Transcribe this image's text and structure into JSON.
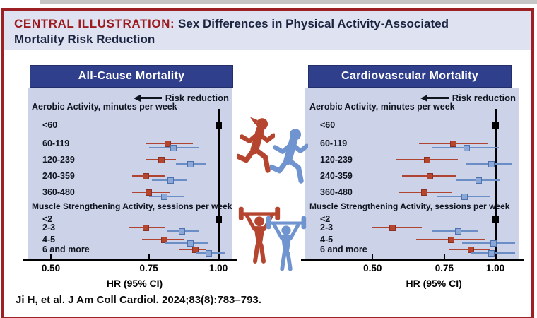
{
  "header": {
    "label": "CENTRAL ILLUSTRATION:",
    "title_line1": "Sex Differences in Physical Activity-Associated",
    "title_line2": "Mortality Risk Reduction"
  },
  "footer": {
    "citation": "Ji H, et al. J Am Coll Cardiol. 2024;83(8):783–793."
  },
  "colors": {
    "frame_red": "#9c2024",
    "title_red": "#9c1b20",
    "title_navy": "#1b2440",
    "band_bg": "#dfe3f1",
    "panel_header_bg": "#2f3f8c",
    "panel_bg": "#ccd3e9",
    "women_red": "#b5452f",
    "men_blue": "#8aa7d7",
    "men_blue_line": "#6b8ec6",
    "reference_black": "#000000"
  },
  "center_figures": {
    "top": [
      "female-runner",
      "male-runner"
    ],
    "bottom": [
      "female-weightlifter",
      "male-weightlifter"
    ],
    "red_means": "women",
    "blue_means": "men"
  },
  "chart_data": [
    {
      "type": "forest",
      "title": "All-Cause Mortality",
      "direction_annotation": "Risk reduction",
      "xlabel": "HR (95% CI)",
      "xscale": "log",
      "xticks": [
        "0.50",
        "0.75",
        "1.00"
      ],
      "xtick_values": [
        0.5,
        0.75,
        1.0
      ],
      "xlim": [
        0.454,
        1.06
      ],
      "reference_value": 1.0,
      "series_legend": {
        "red": "women",
        "blue": "men"
      },
      "sections": [
        {
          "header": "Aerobic Activity, minutes per week",
          "rows": [
            {
              "label": "<60",
              "reference": true
            },
            {
              "label": "60-119",
              "red": {
                "hr": 0.81,
                "lo": 0.74,
                "hi": 0.9
              },
              "blue": {
                "hr": 0.83,
                "lo": 0.75,
                "hi": 0.92
              }
            },
            {
              "label": "120-239",
              "red": {
                "hr": 0.79,
                "lo": 0.74,
                "hi": 0.84
              },
              "blue": {
                "hr": 0.89,
                "lo": 0.84,
                "hi": 0.95
              }
            },
            {
              "label": "240-359",
              "red": {
                "hr": 0.74,
                "lo": 0.7,
                "hi": 0.8
              },
              "blue": {
                "hr": 0.82,
                "lo": 0.76,
                "hi": 0.88
              }
            },
            {
              "label": "360-480",
              "red": {
                "hr": 0.75,
                "lo": 0.7,
                "hi": 0.82
              },
              "blue": {
                "hr": 0.8,
                "lo": 0.75,
                "hi": 0.87
              }
            }
          ]
        },
        {
          "header": "Muscle Strengthening Activity, sessions per week",
          "rows": [
            {
              "label": "<2",
              "reference": true
            },
            {
              "label": "2-3",
              "red": {
                "hr": 0.74,
                "lo": 0.69,
                "hi": 0.8
              },
              "blue": {
                "hr": 0.86,
                "lo": 0.81,
                "hi": 0.92
              }
            },
            {
              "label": "4-5",
              "red": {
                "hr": 0.8,
                "lo": 0.73,
                "hi": 0.87
              },
              "blue": {
                "hr": 0.89,
                "lo": 0.8,
                "hi": 0.96
              }
            },
            {
              "label": "6 and more",
              "red": {
                "hr": 0.91,
                "lo": 0.85,
                "hi": 0.95
              },
              "blue": {
                "hr": 0.96,
                "lo": 0.91,
                "hi": 1.03
              }
            }
          ]
        }
      ]
    },
    {
      "type": "forest",
      "title": "Cardiovascular Mortality",
      "direction_annotation": "Risk reduction",
      "xlabel": "HR (95% CI)",
      "xscale": "log",
      "xticks": [
        "0.50",
        "0.75",
        "1.00"
      ],
      "xtick_values": [
        0.5,
        0.75,
        1.0
      ],
      "xlim": [
        0.342,
        1.145
      ],
      "reference_value": 1.0,
      "series_legend": {
        "red": "women",
        "blue": "men"
      },
      "sections": [
        {
          "header": "Aerobic Activity, minutes per week",
          "rows": [
            {
              "label": "<60",
              "reference": true
            },
            {
              "label": "60-119",
              "red": {
                "hr": 0.79,
                "lo": 0.65,
                "hi": 0.96
              },
              "blue": {
                "hr": 0.85,
                "lo": 0.7,
                "hi": 1.02
              }
            },
            {
              "label": "120-239",
              "red": {
                "hr": 0.68,
                "lo": 0.57,
                "hi": 0.81
              },
              "blue": {
                "hr": 0.98,
                "lo": 0.85,
                "hi": 1.1
              }
            },
            {
              "label": "240-359",
              "red": {
                "hr": 0.69,
                "lo": 0.59,
                "hi": 0.8
              },
              "blue": {
                "hr": 0.91,
                "lo": 0.8,
                "hi": 1.03
              }
            },
            {
              "label": "360-480",
              "red": {
                "hr": 0.67,
                "lo": 0.58,
                "hi": 0.78
              },
              "blue": {
                "hr": 0.84,
                "lo": 0.72,
                "hi": 0.97
              }
            }
          ]
        },
        {
          "header": "Muscle Strengthening Activity, sessions per week",
          "rows": [
            {
              "label": "<2",
              "reference": true
            },
            {
              "label": "2-3",
              "red": {
                "hr": 0.56,
                "lo": 0.5,
                "hi": 0.66
              },
              "blue": {
                "hr": 0.81,
                "lo": 0.7,
                "hi": 0.91
              }
            },
            {
              "label": "4-5",
              "red": {
                "hr": 0.78,
                "lo": 0.64,
                "hi": 0.94
              },
              "blue": {
                "hr": 0.99,
                "lo": 0.83,
                "hi": 1.12
              }
            },
            {
              "label": "6 and more",
              "red": {
                "hr": 0.87,
                "lo": 0.77,
                "hi": 0.97
              },
              "blue": {
                "hr": 0.98,
                "lo": 0.87,
                "hi": 1.12
              }
            }
          ]
        }
      ]
    }
  ]
}
